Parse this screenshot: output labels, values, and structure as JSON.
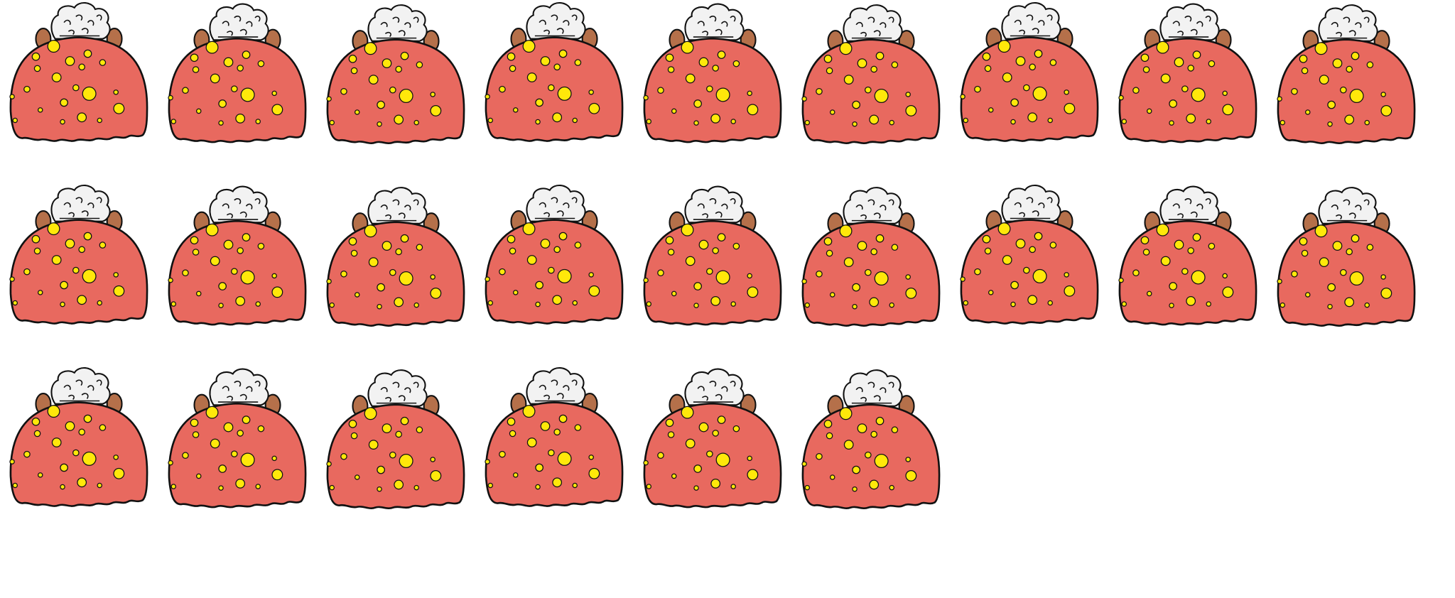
{
  "sprite_sheet": {
    "columns": 9,
    "frame_count": 24,
    "colors": {
      "body": "#E8695F",
      "spots": "#FFE80A",
      "outline": "#111111",
      "hair": "#F2F2F2",
      "ears": "#B5704A",
      "background": "#FFFFFF"
    },
    "character_icon": "hooded-spotted-blob-character-icon"
  }
}
